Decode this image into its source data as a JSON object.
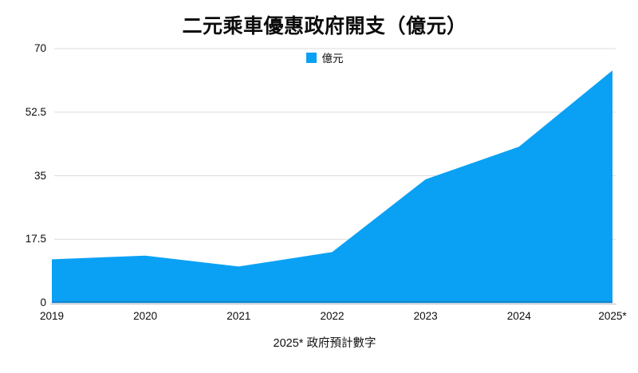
{
  "chart": {
    "title": "二元乘車優惠政府開支（億元）",
    "legend": {
      "label": "億元"
    },
    "footnote": "2025* 政府預計數字",
    "colors": {
      "area": "#0aa1f5",
      "area_bottom_edge": "#1583cc",
      "gridline": "#dcdcdc",
      "axis_line": "#c4c4c4",
      "text": "#0c0c0c"
    }
  },
  "chart_data": {
    "type": "area",
    "title": "二元乘車優惠政府開支（億元）",
    "categories": [
      "2019",
      "2020",
      "2021",
      "2022",
      "2023",
      "2024",
      "2025*"
    ],
    "series": [
      {
        "name": "億元",
        "values": [
          12,
          13,
          10,
          14,
          34,
          43,
          64
        ]
      }
    ],
    "xlabel": "",
    "ylabel": "",
    "ylim": [
      0,
      70
    ],
    "y_ticks": [
      0,
      17.5,
      35,
      52.5,
      70
    ],
    "y_tick_labels": [
      "0",
      "17.5",
      "35",
      "52.5",
      "70"
    ],
    "grid": true,
    "legend_position": "top-center",
    "annotations": [
      "2025* 政府預計數字"
    ],
    "area_color": "#0aa1f5"
  }
}
